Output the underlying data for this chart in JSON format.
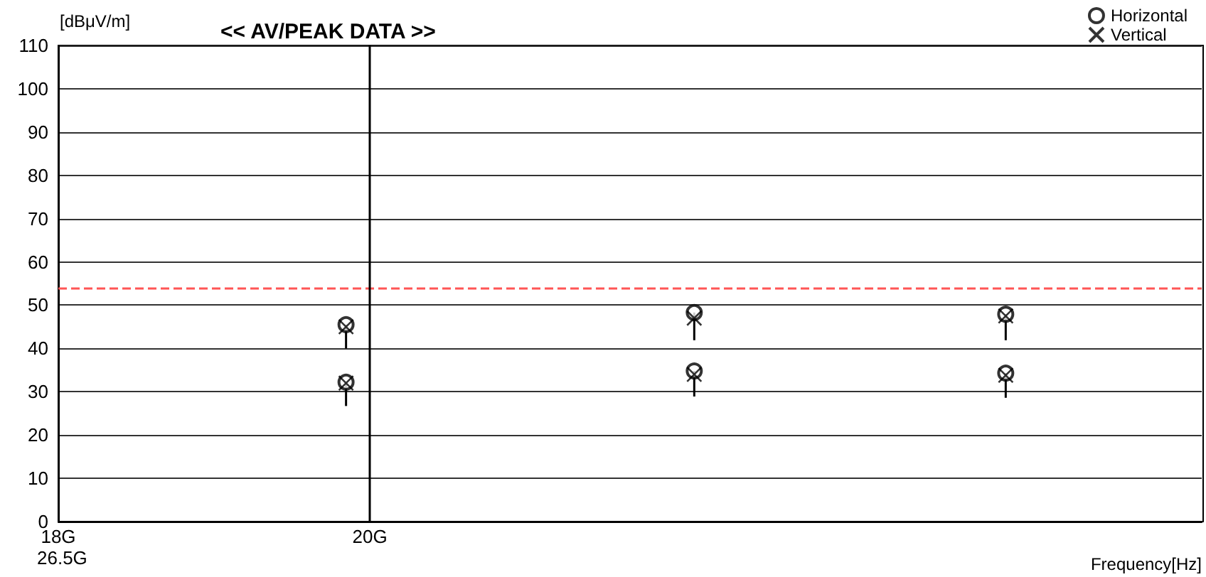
{
  "chart_data": {
    "type": "scatter",
    "title": "<< AV/PEAK DATA >>",
    "ylabel": "[dBμV/m]",
    "xlabel": "Frequency[Hz]",
    "series": [
      {
        "name": "Horizontal",
        "color": "#000000",
        "marker": "circle",
        "values": [
          45.5,
          32.2,
          48.3,
          34.8,
          47.9,
          34.3
        ],
        "x": [
          19.84,
          19.84,
          22.32,
          22.32,
          24.8,
          24.8
        ],
        "errors": [
          [
            40,
            45.5
          ],
          [
            26.7,
            32.2
          ],
          [
            41.9,
            48.3
          ],
          [
            28.9,
            34.8
          ],
          [
            41.9,
            47.9
          ],
          [
            28.6,
            34.3
          ]
        ]
      },
      {
        "name": "Vertical",
        "color": "#000000",
        "marker": "cross",
        "values": [
          45,
          32,
          47,
          34,
          47.5,
          33.8
        ],
        "x": [
          19.84,
          19.84,
          22.32,
          22.32,
          24.8,
          24.8
        ]
      }
    ],
    "log": "x",
    "xlim": [
      18,
      26.5
    ],
    "xticks": [
      {
        "value": 18,
        "label": "18G"
      },
      {
        "value": 20,
        "label": "20G"
      }
    ],
    "ylim": [
      0,
      110
    ],
    "yticks": [
      0,
      10,
      20,
      30,
      40,
      50,
      60,
      70,
      80,
      90,
      100,
      110
    ],
    "annotations": [
      "26.5G"
    ],
    "ref_lines": [
      {
        "axis": "y",
        "value": 54,
        "color": "#ff5555",
        "line_style": "dashed"
      },
      {
        "axis": "x",
        "value": 20,
        "color": "#000000",
        "line_style": "solid"
      }
    ],
    "grid": "y",
    "legend": "top right"
  }
}
